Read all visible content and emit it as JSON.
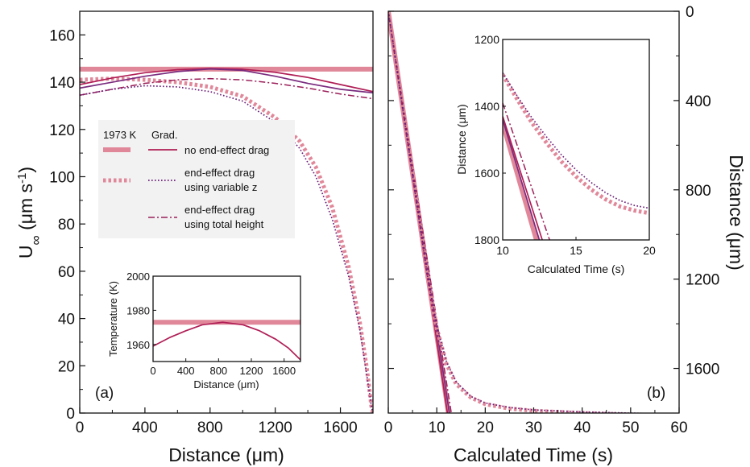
{
  "colors": {
    "k1973": "#e0889a",
    "no_end": "#b01e55",
    "no_end_2": "#7a2b7e",
    "variable_z": "#6a1e78",
    "total_height": "#9a1e58"
  },
  "chart_data": [
    {
      "id": "panel-a",
      "type": "line",
      "panel_label": "(a)",
      "xlabel": "Distance (μm)",
      "ylabel_main": "U",
      "ylabel_sub": "∞",
      "ylabel_unit": " (μm s",
      "ylabel_exp": "-1",
      "ylabel_close": ")",
      "xlim": [
        0,
        1800
      ],
      "ylim": [
        0,
        170
      ],
      "xticks": [
        0,
        400,
        800,
        1200,
        1600
      ],
      "yticks": [
        0,
        20,
        40,
        60,
        80,
        100,
        120,
        140,
        160
      ],
      "series": [
        {
          "key": "k1973_solid",
          "color_key": "k1973",
          "style": "thick-solid",
          "points": [
            [
              0,
              145.5
            ],
            [
              1800,
              145.5
            ]
          ]
        },
        {
          "key": "k1973_dotted",
          "color_key": "k1973",
          "style": "thick-dotted",
          "points": [
            [
              0,
              141
            ],
            [
              200,
              141.5
            ],
            [
              400,
              141
            ],
            [
              600,
              140
            ],
            [
              800,
              138
            ],
            [
              1000,
              134
            ],
            [
              1200,
              125
            ],
            [
              1350,
              115
            ],
            [
              1450,
              104
            ],
            [
              1550,
              87
            ],
            [
              1650,
              62
            ],
            [
              1720,
              38
            ],
            [
              1760,
              20
            ],
            [
              1790,
              3
            ],
            [
              1800,
              0
            ]
          ]
        },
        {
          "key": "grad_solid_a",
          "color_key": "no_end",
          "style": "solid",
          "points": [
            [
              0,
              139
            ],
            [
              200,
              141.8
            ],
            [
              400,
              144
            ],
            [
              600,
              145.3
            ],
            [
              800,
              145.8
            ],
            [
              1000,
              145.5
            ],
            [
              1200,
              144.2
            ],
            [
              1400,
              142
            ],
            [
              1600,
              139
            ],
            [
              1800,
              136
            ]
          ]
        },
        {
          "key": "grad_solid_b",
          "color_key": "no_end_2",
          "style": "solid",
          "points": [
            [
              0,
              137.5
            ],
            [
              200,
              140
            ],
            [
              400,
              142.5
            ],
            [
              600,
              144.5
            ],
            [
              800,
              145.6
            ],
            [
              1000,
              145
            ],
            [
              1200,
              142.5
            ],
            [
              1400,
              139.5
            ],
            [
              1600,
              137
            ],
            [
              1800,
              135.5
            ]
          ]
        },
        {
          "key": "grad_dashdot",
          "color_key": "total_height",
          "style": "dash-dot",
          "points": [
            [
              0,
              134.5
            ],
            [
              200,
              137
            ],
            [
              400,
              139.5
            ],
            [
              600,
              141
            ],
            [
              800,
              141.5
            ],
            [
              1000,
              141
            ],
            [
              1200,
              139.5
            ],
            [
              1400,
              137.5
            ],
            [
              1600,
              135
            ],
            [
              1800,
              133
            ]
          ]
        },
        {
          "key": "grad_dotted",
          "color_key": "variable_z",
          "style": "dotted",
          "points": [
            [
              0,
              134.5
            ],
            [
              200,
              137
            ],
            [
              400,
              138.5
            ],
            [
              600,
              138
            ],
            [
              800,
              136
            ],
            [
              1000,
              132
            ],
            [
              1200,
              123
            ],
            [
              1350,
              112
            ],
            [
              1450,
              100
            ],
            [
              1550,
              82
            ],
            [
              1650,
              58
            ],
            [
              1720,
              35
            ],
            [
              1760,
              17
            ],
            [
              1790,
              3
            ],
            [
              1800,
              0
            ]
          ]
        }
      ],
      "legend": {
        "col1_header": "1973 K",
        "col2_header": "Grad.",
        "entries": [
          {
            "label_lines": [
              "no end-effect drag"
            ],
            "style": "solid",
            "color_key": "no_end",
            "k_style": "thick-solid"
          },
          {
            "label_lines": [
              "end-effect drag",
              "using variable z"
            ],
            "style": "dotted",
            "color_key": "variable_z",
            "k_style": "thick-dotted"
          },
          {
            "label_lines": [
              "end-effect drag",
              "using total height"
            ],
            "style": "dash-dot",
            "color_key": "total_height",
            "k_style": ""
          }
        ]
      }
    },
    {
      "id": "inset-a",
      "type": "line",
      "xlabel": "Distance (μm)",
      "ylabel": "Temperature (K)",
      "xlim": [
        0,
        1800
      ],
      "ylim": [
        1950,
        2000
      ],
      "xticks": [
        0,
        400,
        800,
        1200,
        1600
      ],
      "yticks": [
        1960,
        1980,
        2000
      ],
      "series": [
        {
          "key": "temp_1973",
          "color_key": "k1973",
          "style": "thick-solid",
          "points": [
            [
              0,
              1973
            ],
            [
              1800,
              1973
            ]
          ]
        },
        {
          "key": "temp_grad",
          "color_key": "no_end",
          "style": "solid",
          "points": [
            [
              0,
              1959
            ],
            [
              200,
              1964
            ],
            [
              400,
              1968
            ],
            [
              600,
              1971.5
            ],
            [
              850,
              1973
            ],
            [
              1100,
              1971.5
            ],
            [
              1300,
              1968
            ],
            [
              1500,
              1963
            ],
            [
              1650,
              1958
            ],
            [
              1800,
              1951
            ]
          ]
        }
      ]
    },
    {
      "id": "panel-b",
      "type": "line",
      "panel_label": "(b)",
      "xlabel": "Calculated Time (s)",
      "ylabel_right": "Distance (μm)",
      "xlim": [
        0,
        60
      ],
      "ylim": [
        0,
        1800
      ],
      "y_inverted": true,
      "xticks": [
        0,
        10,
        20,
        30,
        40,
        50,
        60
      ],
      "yticks": [
        0,
        400,
        800,
        1200,
        1600
      ],
      "series": [
        {
          "key": "b_1973_solid",
          "color_key": "k1973",
          "style": "thick-solid",
          "points": [
            [
              0,
              0
            ],
            [
              12.4,
              1800
            ]
          ]
        },
        {
          "key": "b_grad_solid",
          "color_key": "no_end",
          "style": "solid",
          "points": [
            [
              0,
              0
            ],
            [
              12.2,
              1800
            ]
          ]
        },
        {
          "key": "b_grad_solid2",
          "color_key": "no_end_2",
          "style": "solid",
          "points": [
            [
              0,
              0
            ],
            [
              12.6,
              1800
            ]
          ]
        },
        {
          "key": "b_dashdot",
          "color_key": "total_height",
          "style": "dash-dot",
          "points": [
            [
              0,
              0
            ],
            [
              13,
              1800
            ]
          ]
        },
        {
          "key": "b_1973_dotted",
          "color_key": "k1973",
          "style": "thick-dotted",
          "points": [
            [
              0,
              0
            ],
            [
              3,
              440
            ],
            [
              6,
              880
            ],
            [
              8,
              1180
            ],
            [
              10,
              1420
            ],
            [
              12,
              1580
            ],
            [
              14,
              1670
            ],
            [
              17,
              1730
            ],
            [
              20,
              1760
            ],
            [
              25,
              1780
            ],
            [
              30,
              1790
            ],
            [
              40,
              1800
            ],
            [
              50,
              1807
            ],
            [
              60,
              1812
            ]
          ]
        },
        {
          "key": "b_grad_dotted",
          "color_key": "variable_z",
          "style": "dotted",
          "points": [
            [
              0,
              0
            ],
            [
              3,
              440
            ],
            [
              6,
              880
            ],
            [
              8,
              1175
            ],
            [
              10,
              1410
            ],
            [
              12,
              1570
            ],
            [
              14,
              1660
            ],
            [
              17,
              1725
            ],
            [
              20,
              1755
            ],
            [
              25,
              1775
            ],
            [
              30,
              1786
            ],
            [
              40,
              1795
            ],
            [
              50,
              1800
            ],
            [
              60,
              1805
            ]
          ]
        }
      ]
    },
    {
      "id": "inset-b",
      "type": "line",
      "xlabel": "Calculated Time (s)",
      "ylabel": "Distance (μm)",
      "xlim": [
        10,
        20
      ],
      "ylim": [
        1200,
        1800
      ],
      "y_inverted": true,
      "xticks": [
        10,
        15,
        20
      ],
      "yticks": [
        1200,
        1400,
        1600,
        1800
      ],
      "series": [
        {
          "key": "ib_1973_solid",
          "color_key": "k1973",
          "style": "thick-solid",
          "points": [
            [
              10,
              1450
            ],
            [
              12.3,
              1800
            ]
          ]
        },
        {
          "key": "ib_grad_solid",
          "color_key": "no_end",
          "style": "solid",
          "points": [
            [
              10,
              1430
            ],
            [
              12.7,
              1800
            ]
          ]
        },
        {
          "key": "ib_grad_solid2",
          "color_key": "no_end_2",
          "style": "solid",
          "points": [
            [
              10,
              1440
            ],
            [
              12.5,
              1800
            ]
          ]
        },
        {
          "key": "ib_dashdot",
          "color_key": "total_height",
          "style": "dash-dot",
          "points": [
            [
              10,
              1390
            ],
            [
              13.2,
              1800
            ]
          ]
        },
        {
          "key": "ib_1973_dotted",
          "color_key": "k1973",
          "style": "thick-dotted",
          "points": [
            [
              10,
              1305
            ],
            [
              11,
              1380
            ],
            [
              12,
              1450
            ],
            [
              13,
              1510
            ],
            [
              14,
              1565
            ],
            [
              15,
              1610
            ],
            [
              16,
              1648
            ],
            [
              17,
              1678
            ],
            [
              18,
              1700
            ],
            [
              19,
              1712
            ],
            [
              20,
              1720
            ]
          ]
        },
        {
          "key": "ib_grad_dotted",
          "color_key": "variable_z",
          "style": "dotted",
          "points": [
            [
              10,
              1300
            ],
            [
              11,
              1370
            ],
            [
              12,
              1435
            ],
            [
              13,
              1492
            ],
            [
              14,
              1545
            ],
            [
              15,
              1590
            ],
            [
              16,
              1627
            ],
            [
              17,
              1658
            ],
            [
              18,
              1682
            ],
            [
              19,
              1697
            ],
            [
              20,
              1705
            ]
          ]
        }
      ]
    }
  ]
}
